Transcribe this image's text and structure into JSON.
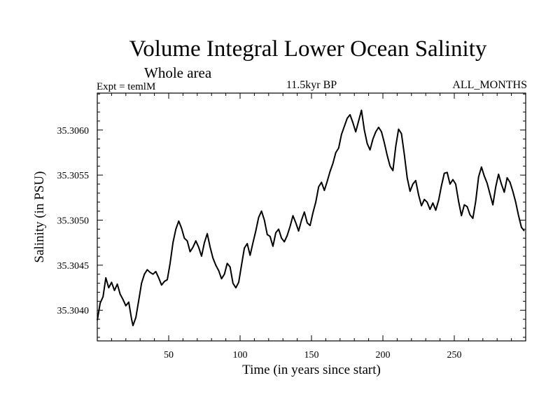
{
  "header": {
    "title": "Volume Integral Lower Ocean Salinity",
    "subtitle": "Whole area",
    "expt": "Expt = temlM",
    "period": "11.5kyr BP",
    "months": "ALL_MONTHS"
  },
  "chart_data": {
    "type": "line",
    "title": "Volume Integral Lower Ocean Salinity",
    "subtitle": "Whole area",
    "xlabel": "Time (in years since start)",
    "ylabel": "Salinity (in PSU)",
    "xlim": [
      0,
      300
    ],
    "ylim": [
      35.30366,
      35.30641
    ],
    "xticks": [
      50,
      100,
      150,
      200,
      250
    ],
    "xtick_labels": [
      "50",
      "100",
      "150",
      "200",
      "250"
    ],
    "yticks": [
      35.304,
      35.3045,
      35.305,
      35.3055,
      35.306
    ],
    "ytick_labels": [
      "35.3040",
      "35.3045",
      "35.3050",
      "35.3055",
      "35.3060"
    ],
    "grid": false,
    "series": [
      {
        "name": "Salinity",
        "color": "#000000",
        "x": [
          0,
          2,
          4,
          6,
          8,
          10,
          12,
          14,
          16,
          18,
          20,
          22,
          24,
          25,
          27,
          29,
          31,
          33,
          35,
          37,
          39,
          41,
          43,
          45,
          47,
          49,
          51,
          53,
          55,
          57,
          59,
          61,
          63,
          65,
          67,
          69,
          71,
          73,
          75,
          77,
          79,
          81,
          83,
          85,
          87,
          89,
          91,
          93,
          95,
          97,
          99,
          101,
          103,
          105,
          107,
          109,
          111,
          113,
          115,
          117,
          119,
          121,
          123,
          125,
          127,
          129,
          131,
          133,
          135,
          137,
          139,
          141,
          143,
          145,
          147,
          149,
          151,
          153,
          155,
          157,
          159,
          161,
          163,
          165,
          167,
          169,
          171,
          173,
          175,
          177,
          179,
          181,
          183,
          185,
          187,
          189,
          191,
          193,
          195,
          197,
          199,
          201,
          203,
          205,
          207,
          209,
          211,
          213,
          215,
          217,
          219,
          221,
          223,
          225,
          227,
          229,
          231,
          233,
          235,
          237,
          239,
          241,
          243,
          245,
          247,
          249,
          251,
          253,
          255,
          257,
          259,
          261,
          263,
          265,
          267,
          269,
          271,
          273,
          275,
          277,
          279,
          281,
          283,
          285,
          287,
          289,
          291,
          293,
          295,
          297,
          299
        ],
        "values": [
          35.30389,
          35.30408,
          35.30415,
          35.30436,
          35.30425,
          35.30431,
          35.30422,
          35.30429,
          35.30418,
          35.30412,
          35.30405,
          35.30409,
          35.3039,
          35.30383,
          35.30392,
          35.30411,
          35.3043,
          35.3044,
          35.30445,
          35.30442,
          35.3044,
          35.30443,
          35.30436,
          35.30428,
          35.30432,
          35.30434,
          35.30452,
          35.30475,
          35.3049,
          35.30499,
          35.30491,
          35.3048,
          35.30477,
          35.30465,
          35.3047,
          35.30477,
          35.3047,
          35.3046,
          35.30475,
          35.30485,
          35.3047,
          35.30458,
          35.3045,
          35.30444,
          35.30435,
          35.3044,
          35.30452,
          35.30448,
          35.3043,
          35.30425,
          35.30431,
          35.3045,
          35.30469,
          35.30474,
          35.30461,
          35.30475,
          35.30488,
          35.30503,
          35.3051,
          35.305,
          35.30484,
          35.30482,
          35.30471,
          35.30486,
          35.3049,
          35.3048,
          35.30476,
          35.30483,
          35.30493,
          35.30505,
          35.30497,
          35.30488,
          35.305,
          35.30509,
          35.30497,
          35.30494,
          35.30508,
          35.3052,
          35.30537,
          35.30542,
          35.30533,
          35.30543,
          35.30554,
          35.30563,
          35.30575,
          35.3058,
          35.30595,
          35.30604,
          35.30613,
          35.30617,
          35.30608,
          35.30598,
          35.3061,
          35.30622,
          35.306,
          35.30585,
          35.30578,
          35.3059,
          35.30598,
          35.30603,
          35.30598,
          35.30586,
          35.30572,
          35.3056,
          35.30555,
          35.30582,
          35.30601,
          35.30596,
          35.30573,
          35.30547,
          35.30532,
          35.3054,
          35.30544,
          35.30528,
          35.30516,
          35.30523,
          35.3052,
          35.30512,
          35.30519,
          35.30511,
          35.30522,
          35.30538,
          35.30552,
          35.30553,
          35.3054,
          35.30545,
          35.3054,
          35.30521,
          35.30505,
          35.30517,
          35.30515,
          35.30506,
          35.30502,
          35.30521,
          35.30548,
          35.30559,
          35.30549,
          35.30541,
          35.30529,
          35.30517,
          35.30537,
          35.30551,
          35.3054,
          35.30531,
          35.30547,
          35.30542,
          35.30532,
          35.3052,
          35.30505,
          35.30492,
          35.30488
        ]
      }
    ]
  }
}
